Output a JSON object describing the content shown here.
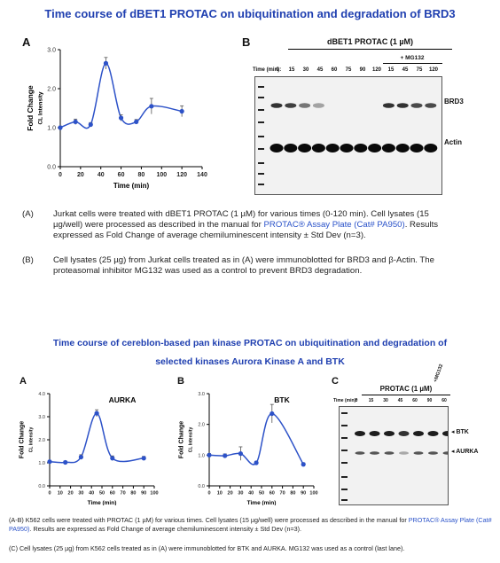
{
  "title_top": "Time course of dBET1 PROTAC on ubiquitination and degradation of BRD3",
  "title_bottom_1": "Time course of cereblon-based pan kinase PROTAC on ubiquitination and degradation of",
  "title_bottom_2": "selected kinases Aurora Kinase A and BTK",
  "panel_labels": {
    "top_a": "A",
    "top_b": "B",
    "bot_a": "A",
    "bot_b": "B",
    "bot_c": "C"
  },
  "blot_top": {
    "header": "dBET1 PROTAC (1 µM)",
    "mg132": "+ MG132",
    "time_label": "Time (min):",
    "times": [
      "0",
      "15",
      "30",
      "45",
      "60",
      "75",
      "90",
      "120",
      "15",
      "45",
      "75",
      "120"
    ],
    "band1": "BRD3",
    "band2": "Actin"
  },
  "blot_bottom": {
    "header": "PROTAC (1 µM)",
    "mg132": "+MG132",
    "time_label": "Time (min):",
    "times": [
      "0",
      "15",
      "30",
      "45",
      "60",
      "90",
      "60"
    ],
    "band1": "BTK",
    "band2": "AURKA"
  },
  "captions_top": {
    "a_tag": "(A)",
    "a_text_1": "Jurkat cells were treated with dBET1 PROTAC (1 µM) for various times (0-120 min). Cell lysates (15",
    "a_text_2": "µg/well) were processed as described in the manual for",
    "a_link": "PROTAC® Assay Plate (Cat# PA950)",
    "a_text_3": ". Results",
    "a_text_4": "expressed as Fold Change of average chemiluminescent intensity ± Std Dev (n=3).",
    "b_tag": "(B)",
    "b_text_1": "Cell lysates (25 µg) from Jurkat cells treated as in (A) were immunoblotted for BRD3 and β-Actin. The",
    "b_text_2": "proteasomal inhibitor MG132 was used as a control to prevent BRD3 degradation."
  },
  "captions_bottom": {
    "ab_1": "(A-B) K562 cells were treated with PROTAC (1 µM) for various times. Cell lysates (15 µg/well) were processed as described in the manual for",
    "ab_link": "PROTAC® Assay Plate (Cat# PA950)",
    "ab_2": ". Results are expressed as Fold Change of average chemiluminescent intensity ± Std Dev (n=3).",
    "c_1": "(C) Cell lysates (25 µg) from K562 cells treated as in (A) were immunoblotted for BTK and AURKA. MG132 was used as a control (last lane)."
  },
  "chart_data": [
    {
      "type": "line",
      "title": "",
      "xlabel": "Time (min)",
      "ylabel": "Fold Change",
      "ylabel2": "CL Intensity",
      "xlim": [
        0,
        140
      ],
      "ylim": [
        0,
        3.0
      ],
      "xticks": [
        0,
        20,
        40,
        60,
        80,
        100,
        120,
        140
      ],
      "yticks": [
        "0.0",
        "1.0",
        "2.0",
        "3.0"
      ],
      "color": "#2d52c8",
      "x": [
        0,
        15,
        30,
        45,
        60,
        75,
        90,
        120
      ],
      "y": [
        1.0,
        1.15,
        1.08,
        2.65,
        1.25,
        1.15,
        1.55,
        1.42
      ],
      "err": [
        0.04,
        0.07,
        0.05,
        0.15,
        0.08,
        0.06,
        0.2,
        0.14
      ]
    },
    {
      "type": "line",
      "title": "AURKA",
      "xlabel": "Time (min)",
      "ylabel": "Fold Change",
      "ylabel2": "CL Intensity",
      "xlim": [
        0,
        100
      ],
      "ylim": [
        0,
        4.0
      ],
      "xticks": [
        0,
        10,
        20,
        30,
        40,
        50,
        60,
        70,
        80,
        90,
        100
      ],
      "yticks": [
        "0.0",
        "1.0",
        "2.0",
        "3.0",
        "4.0"
      ],
      "color": "#2d52c8",
      "x": [
        0,
        15,
        30,
        45,
        60,
        90
      ],
      "y": [
        1.05,
        1.02,
        1.25,
        3.15,
        1.2,
        1.2
      ],
      "err": [
        0.05,
        0.06,
        0.1,
        0.15,
        0.1,
        0.08
      ]
    },
    {
      "type": "line",
      "title": "BTK",
      "xlabel": "Time (min)",
      "ylabel": "Fold Change",
      "ylabel2": "CL Intensity",
      "xlim": [
        0,
        100
      ],
      "ylim": [
        0,
        3.0
      ],
      "xticks": [
        0,
        10,
        20,
        30,
        40,
        50,
        60,
        70,
        80,
        90,
        100
      ],
      "yticks": [
        "0.0",
        "1.0",
        "2.0",
        "3.0"
      ],
      "color": "#2d52c8",
      "x": [
        0,
        15,
        30,
        45,
        60,
        90
      ],
      "y": [
        1.0,
        0.98,
        1.05,
        0.75,
        2.35,
        0.7
      ],
      "err": [
        0.05,
        0.06,
        0.22,
        0.05,
        0.3,
        0.05
      ]
    }
  ]
}
